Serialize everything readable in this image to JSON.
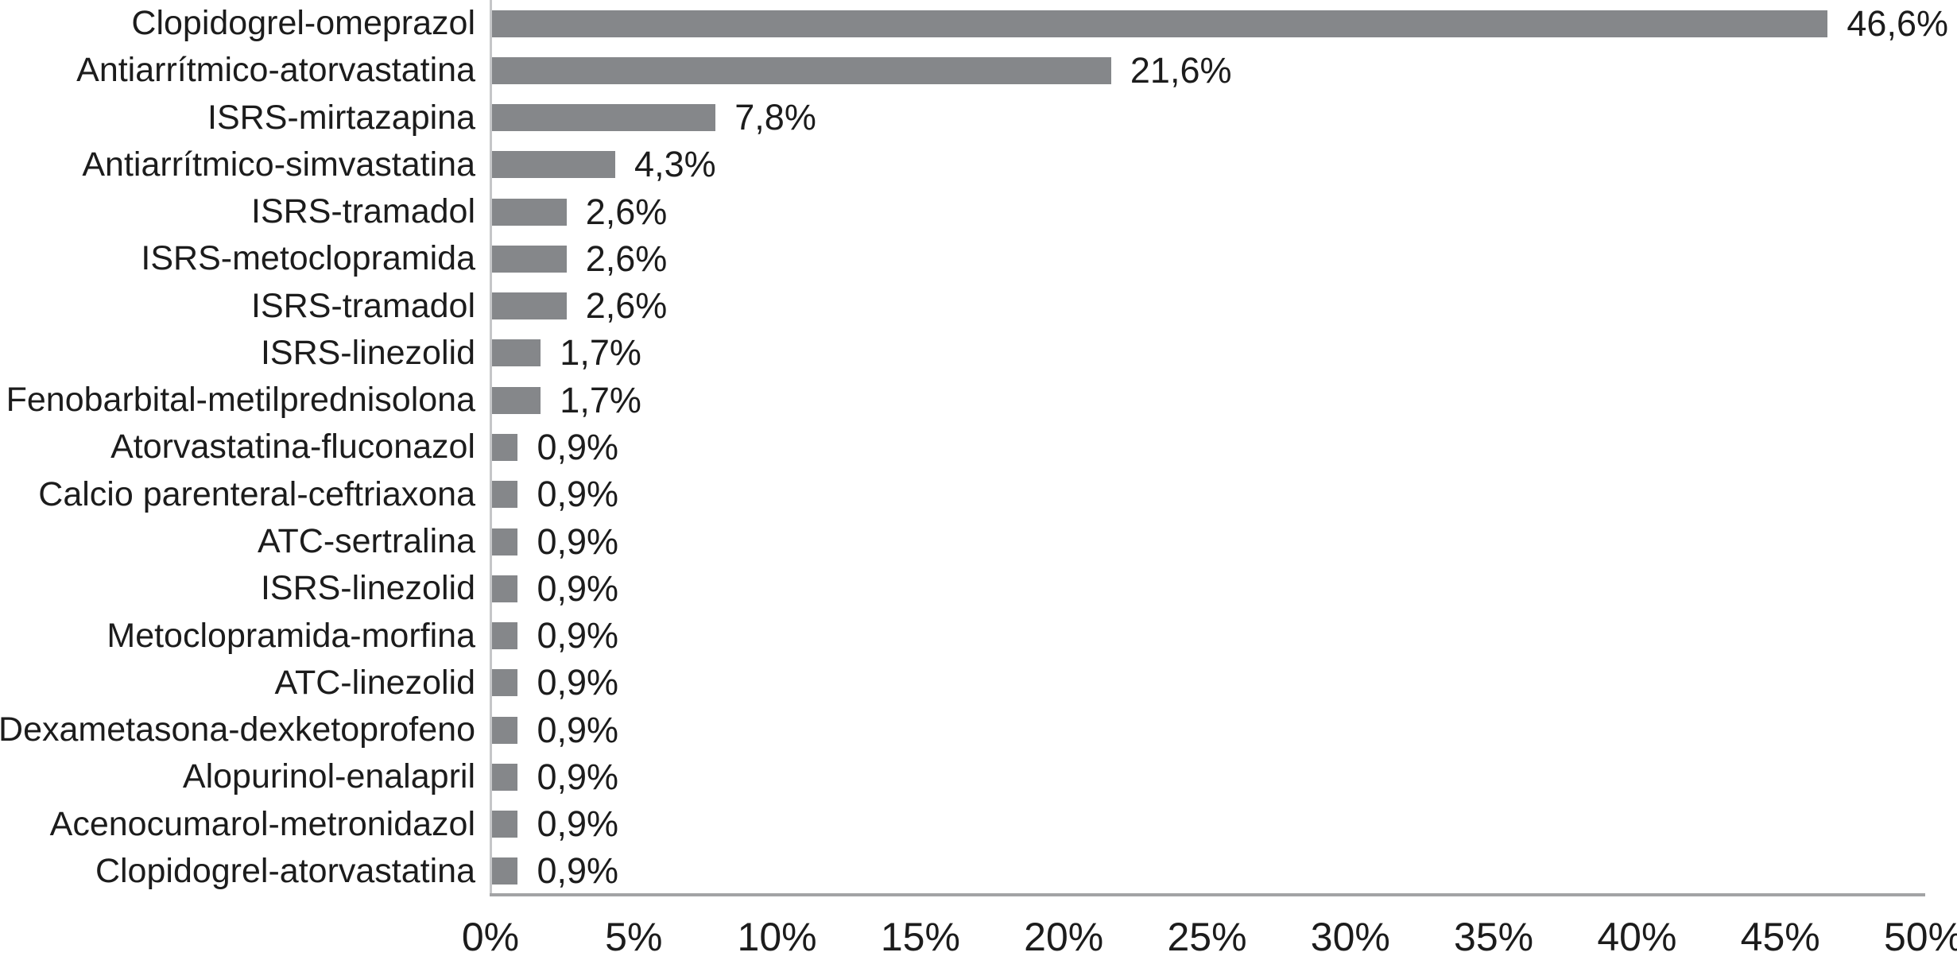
{
  "chart_data": {
    "type": "bar",
    "orientation": "horizontal",
    "title": "",
    "xlabel": "",
    "ylabel": "",
    "xlim": [
      0,
      50
    ],
    "x_tick_step": 5,
    "grid": false,
    "legend": false,
    "decimal_separator": ",",
    "categories": [
      "Clopidogrel-omeprazol",
      "Antiarrítmico-atorvastatina",
      "ISRS-mirtazapina",
      "Antiarrítmico-simvastatina",
      "ISRS-tramadol",
      "ISRS-metoclopramida",
      "ISRS-tramadol",
      "ISRS-linezolid",
      "Fenobarbital-metilprednisolona",
      "Atorvastatina-fluconazol",
      "Calcio parenteral-ceftriaxona",
      "ATC-sertralina",
      "ISRS-linezolid",
      "Metoclopramida-morfina",
      "ATC-linezolid",
      "Dexametasona-dexketoprofeno",
      "Alopurinol-enalapril",
      "Acenocumarol-metronidazol",
      "Clopidogrel-atorvastatina"
    ],
    "values": [
      46.6,
      21.6,
      7.8,
      4.3,
      2.6,
      2.6,
      2.6,
      1.7,
      1.7,
      0.9,
      0.9,
      0.9,
      0.9,
      0.9,
      0.9,
      0.9,
      0.9,
      0.9,
      0.9
    ],
    "value_labels": [
      "46,6%",
      "21,6%",
      "7,8%",
      "4,3%",
      "2,6%",
      "2,6%",
      "2,6%",
      "1,7%",
      "1,7%",
      "0,9%",
      "0,9%",
      "0,9%",
      "0,9%",
      "0,9%",
      "0,9%",
      "0,9%",
      "0,9%",
      "0,9%",
      "0,9%"
    ],
    "x_ticks": [
      "0%",
      "5%",
      "10%",
      "15%",
      "20%",
      "25%",
      "30%",
      "35%",
      "40%",
      "45%",
      "50%"
    ],
    "x_tick_values": [
      0,
      5,
      10,
      15,
      20,
      25,
      30,
      35,
      40,
      45,
      50
    ],
    "colors": {
      "bar": "#85878a",
      "text": "#1c1c1c",
      "y_axis_line": "#c5c6c8",
      "x_axis_line": "#a2a3a5",
      "background": "#ffffff"
    }
  }
}
